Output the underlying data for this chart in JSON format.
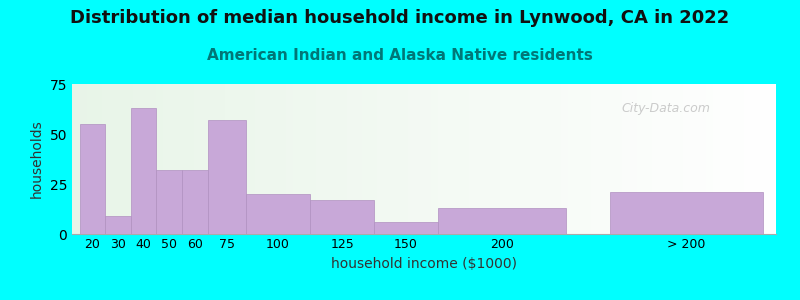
{
  "title": "Distribution of median household income in Lynwood, CA in 2022",
  "subtitle": "American Indian and Alaska Native residents",
  "xlabel": "household income ($1000)",
  "ylabel": "households",
  "background_color": "#00FFFF",
  "bar_color": "#c8a8d8",
  "bar_edge_color": "#b090c0",
  "values": [
    55,
    9,
    63,
    32,
    32,
    57,
    20,
    17,
    6,
    13,
    21
  ],
  "bar_lefts": [
    13,
    23,
    33,
    43,
    53,
    63,
    78,
    103,
    128,
    153,
    220
  ],
  "bar_widths": [
    10,
    10,
    10,
    10,
    10,
    15,
    25,
    25,
    25,
    50,
    60
  ],
  "ylim": [
    0,
    75
  ],
  "yticks": [
    0,
    25,
    50,
    75
  ],
  "xtick_labels": [
    "20",
    "30",
    "40",
    "50",
    "60",
    "75",
    "100",
    "125",
    "150",
    "200",
    "> 200"
  ],
  "xtick_positions": [
    18,
    28,
    38,
    48,
    58,
    70.5,
    90.5,
    115.5,
    140.5,
    178,
    250
  ],
  "title_fontsize": 13,
  "subtitle_fontsize": 11,
  "subtitle_color": "#007777",
  "axis_label_fontsize": 10,
  "watermark": "City-Data.com",
  "xlim_left": 10,
  "xlim_right": 285
}
